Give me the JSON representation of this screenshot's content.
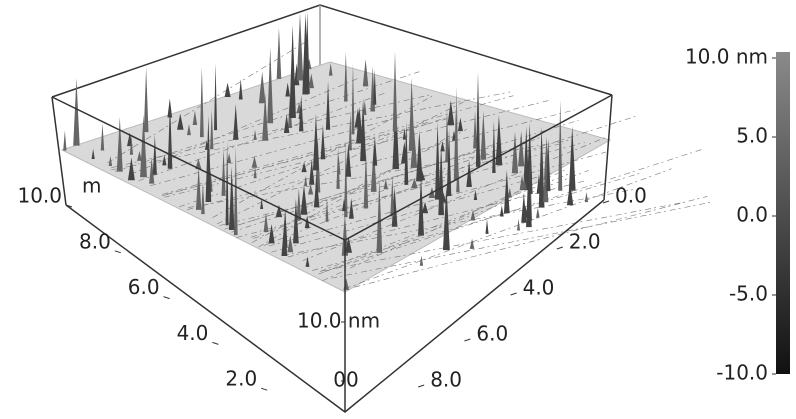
{
  "chart_data": {
    "type": "surface3d",
    "x_unit": "m",
    "xlim": [
      0,
      10
    ],
    "xticks": [
      {
        "value": 2,
        "label": "2.0"
      },
      {
        "value": 4,
        "label": "4.0"
      },
      {
        "value": 6,
        "label": "6.0"
      },
      {
        "value": 8,
        "label": "8.0"
      },
      {
        "value": 10,
        "label": "10.0"
      }
    ],
    "ylim": [
      0,
      10
    ],
    "yticks": [
      {
        "value": 0,
        "label": "0.0"
      },
      {
        "value": 2,
        "label": "2.0"
      },
      {
        "value": 4,
        "label": "4.0"
      },
      {
        "value": 6,
        "label": "6.0"
      },
      {
        "value": 8,
        "label": "8.0"
      }
    ],
    "zlim": [
      0,
      10
    ],
    "zticks": [
      {
        "value": 0,
        "label": "0"
      },
      {
        "value": 10,
        "label": "10.0 nm"
      }
    ],
    "corner_label": "0",
    "colorbar": {
      "lim": [
        -10,
        10
      ],
      "ticks": [
        {
          "value": 10,
          "label": "10.0 nm"
        },
        {
          "value": 5,
          "label": "5.0"
        },
        {
          "value": 0,
          "label": "0.0"
        },
        {
          "value": -5,
          "label": "-5.0"
        },
        {
          "value": -10,
          "label": "-10.0"
        }
      ],
      "colors": [
        "#111111",
        "#8a8a8a"
      ]
    }
  }
}
